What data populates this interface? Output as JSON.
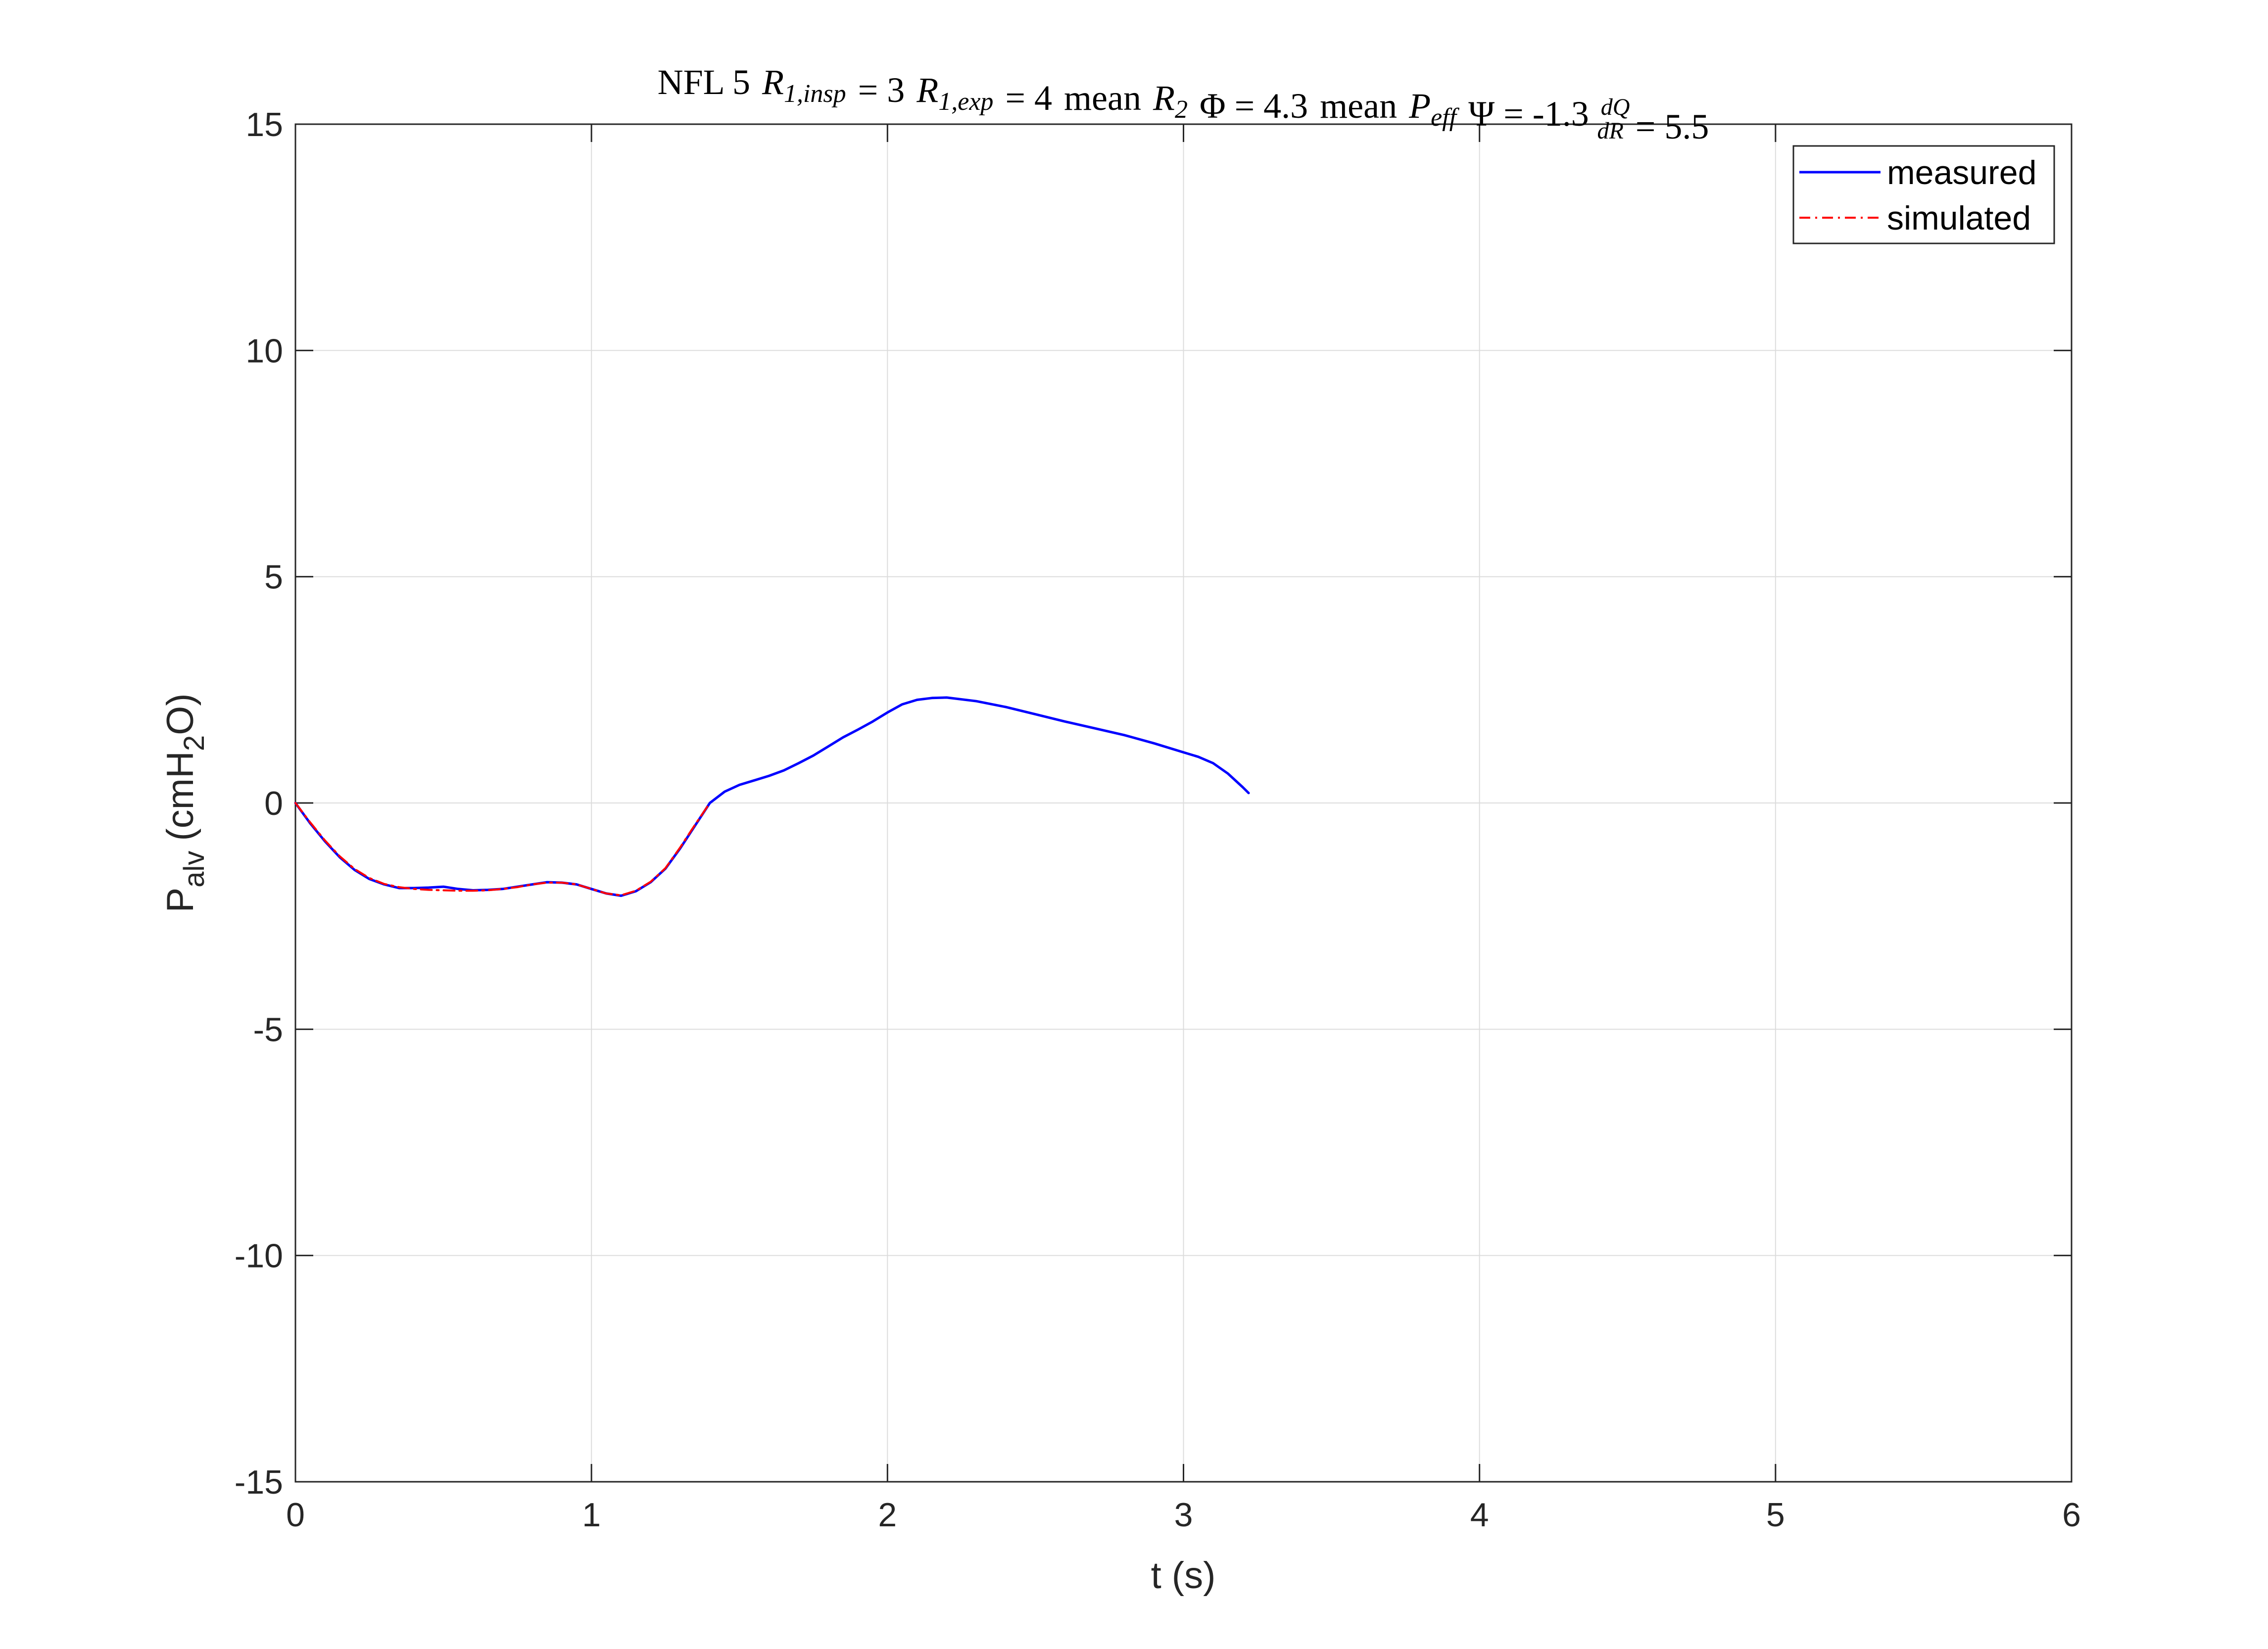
{
  "chart_data": {
    "type": "line",
    "title": {
      "segments": [
        {
          "kind": "text",
          "value": "NFL 5"
        },
        {
          "kind": "var",
          "base": "R",
          "sub": "1,insp"
        },
        {
          "kind": "text",
          "value": "= 3"
        },
        {
          "kind": "var",
          "base": "R",
          "sub": "1,exp"
        },
        {
          "kind": "text",
          "value": "= 4"
        },
        {
          "kind": "text",
          "value": "mean"
        },
        {
          "kind": "var",
          "base": "R",
          "sub": "2"
        },
        {
          "kind": "text",
          "value": "Φ = 4.3"
        },
        {
          "kind": "text",
          "value": "mean"
        },
        {
          "kind": "var",
          "base": "P",
          "sub": "eff"
        },
        {
          "kind": "text",
          "value": "Ψ = -1.3"
        },
        {
          "kind": "frac",
          "num": "dQ",
          "den": "dR"
        },
        {
          "kind": "text",
          "value": "= 5.5"
        }
      ]
    },
    "xlabel": "t (s)",
    "ylabel": {
      "base": "P",
      "sub": "alv",
      "text1": "(cmH",
      "sub2": "2",
      "text2": "O)"
    },
    "xlim": [
      0,
      6
    ],
    "ylim": [
      -15,
      15
    ],
    "xticks": [
      0,
      1,
      2,
      3,
      4,
      5,
      6
    ],
    "xtick_labels": [
      "0",
      "1",
      "2",
      "3",
      "4",
      "5",
      "6"
    ],
    "yticks": [
      -15,
      -10,
      -5,
      0,
      5,
      10,
      15
    ],
    "ytick_labels": [
      "-15",
      "-10",
      "-5",
      "0",
      "5",
      "10",
      "15"
    ],
    "grid": true,
    "legend_position": "top-right",
    "series": [
      {
        "name": "measured",
        "color": "#0000ff",
        "line_style": "solid",
        "x": [
          0,
          0.05,
          0.1,
          0.15,
          0.2,
          0.25,
          0.3,
          0.35,
          0.4,
          0.45,
          0.5,
          0.55,
          0.6,
          0.65,
          0.7,
          0.75,
          0.8,
          0.85,
          0.9,
          0.95,
          1.0,
          1.05,
          1.1,
          1.15,
          1.2,
          1.25,
          1.3,
          1.35,
          1.4,
          1.45,
          1.5,
          1.55,
          1.6,
          1.65,
          1.7,
          1.75,
          1.8,
          1.85,
          1.9,
          1.95,
          2.0,
          2.05,
          2.1,
          2.15,
          2.2,
          2.3,
          2.4,
          2.5,
          2.6,
          2.7,
          2.8,
          2.9,
          3.0,
          3.05,
          3.1,
          3.15,
          3.2,
          3.22
        ],
        "y": [
          0,
          -0.45,
          -0.85,
          -1.2,
          -1.48,
          -1.68,
          -1.8,
          -1.88,
          -1.88,
          -1.87,
          -1.85,
          -1.9,
          -1.93,
          -1.92,
          -1.9,
          -1.85,
          -1.8,
          -1.75,
          -1.76,
          -1.8,
          -1.9,
          -2.0,
          -2.05,
          -1.95,
          -1.75,
          -1.45,
          -1.0,
          -0.5,
          0.0,
          0.25,
          0.4,
          0.5,
          0.6,
          0.72,
          0.88,
          1.05,
          1.25,
          1.45,
          1.62,
          1.8,
          2.0,
          2.18,
          2.28,
          2.32,
          2.33,
          2.25,
          2.12,
          1.96,
          1.8,
          1.65,
          1.5,
          1.32,
          1.12,
          1.02,
          0.88,
          0.65,
          0.35,
          0.22
        ]
      },
      {
        "name": "simulated",
        "color": "#ff0000",
        "line_style": "dashdot",
        "x": [
          0,
          0.05,
          0.1,
          0.15,
          0.2,
          0.25,
          0.3,
          0.35,
          0.4,
          0.45,
          0.5,
          0.55,
          0.6,
          0.65,
          0.7,
          0.75,
          0.8,
          0.85,
          0.9,
          0.95,
          1.0,
          1.05,
          1.1,
          1.15,
          1.2,
          1.25,
          1.3,
          1.35,
          1.4
        ],
        "y": [
          0,
          -0.43,
          -0.83,
          -1.18,
          -1.46,
          -1.66,
          -1.79,
          -1.86,
          -1.9,
          -1.92,
          -1.93,
          -1.94,
          -1.94,
          -1.93,
          -1.9,
          -1.86,
          -1.8,
          -1.76,
          -1.76,
          -1.8,
          -1.9,
          -2.0,
          -2.04,
          -1.94,
          -1.74,
          -1.44,
          -0.98,
          -0.48,
          0.0
        ]
      }
    ]
  }
}
